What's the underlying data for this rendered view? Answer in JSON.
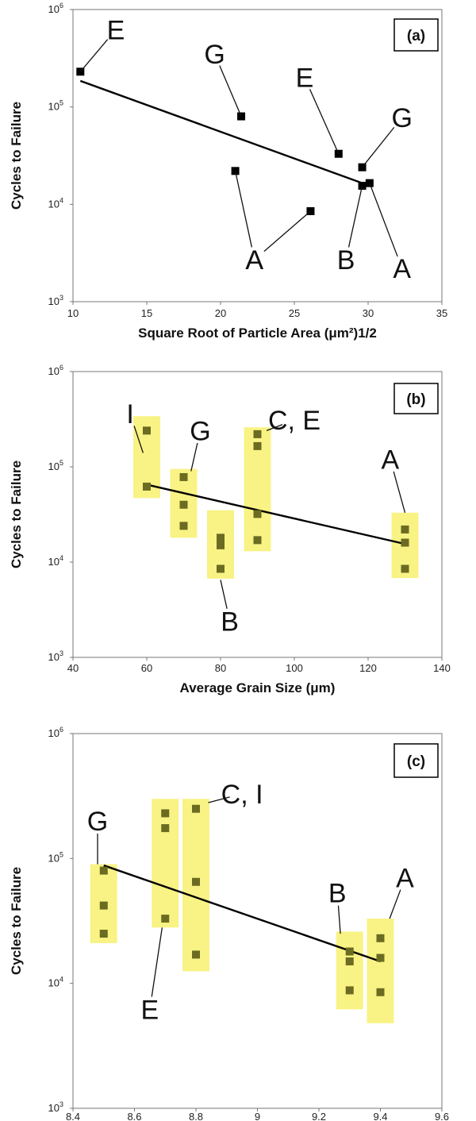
{
  "chart_data": [
    {
      "type": "scatter",
      "panel_label": "(a)",
      "xlabel": "Square Root of Particle Area (μm²)1/2",
      "ylabel": "Cycles to Failure",
      "xlim": [
        10,
        35
      ],
      "ylim": [
        1000,
        1000000
      ],
      "yscale": "log",
      "xticks": [
        "10",
        "15",
        "20",
        "25",
        "30",
        "35"
      ],
      "ytick_bases": [
        "10",
        "10",
        "10",
        "10"
      ],
      "ytick_exps": [
        "3",
        "4",
        "5",
        "6"
      ],
      "points": [
        {
          "x": 10.5,
          "y": 230000
        },
        {
          "x": 21.4,
          "y": 80000
        },
        {
          "x": 21.0,
          "y": 22000
        },
        {
          "x": 26.1,
          "y": 8500
        },
        {
          "x": 28.0,
          "y": 33000
        },
        {
          "x": 29.6,
          "y": 24000
        },
        {
          "x": 29.6,
          "y": 15500
        },
        {
          "x": 30.1,
          "y": 16500
        }
      ],
      "trendline": {
        "x": [
          10.5,
          30.1
        ],
        "y": [
          185000,
          15500
        ]
      },
      "annotations": [
        {
          "text": "E",
          "x": 12.9,
          "y": 620000,
          "point": [
            10.5,
            230000
          ]
        },
        {
          "text": "G",
          "x": 19.6,
          "y": 350000,
          "point": [
            21.4,
            80000
          ]
        },
        {
          "text": "E",
          "x": 25.7,
          "y": 200000,
          "point": [
            28.0,
            33000
          ]
        },
        {
          "text": "G",
          "x": 32.3,
          "y": 78000,
          "point": [
            29.6,
            24000
          ]
        },
        {
          "text": "A",
          "x": 22.3,
          "y": 2700,
          "point": [
            21.0,
            22000
          ]
        },
        {
          "text": "A",
          "x": 22.3,
          "y": 2700,
          "point": [
            26.1,
            8500
          ]
        },
        {
          "text": "B",
          "x": 28.5,
          "y": 2700,
          "point": [
            29.6,
            15500
          ]
        },
        {
          "text": "A",
          "x": 32.3,
          "y": 2200,
          "point": [
            30.1,
            16500
          ]
        }
      ],
      "grid": false
    },
    {
      "type": "scatter",
      "panel_label": "(b)",
      "xlabel": "Average Grain Size (μm)",
      "ylabel": "Cycles to Failure",
      "xlim": [
        40,
        140
      ],
      "ylim": [
        1000,
        1000000
      ],
      "yscale": "log",
      "xticks": [
        "40",
        "60",
        "80",
        "100",
        "120",
        "140"
      ],
      "ytick_bases": [
        "10",
        "10",
        "10",
        "10"
      ],
      "ytick_exps": [
        "3",
        "4",
        "5",
        "6"
      ],
      "points": [
        {
          "x": 60,
          "y": 240000
        },
        {
          "x": 60,
          "y": 62000
        },
        {
          "x": 70,
          "y": 78000
        },
        {
          "x": 70,
          "y": 40000
        },
        {
          "x": 70,
          "y": 24000
        },
        {
          "x": 80,
          "y": 18000
        },
        {
          "x": 80,
          "y": 15000
        },
        {
          "x": 80,
          "y": 8500
        },
        {
          "x": 90,
          "y": 220000
        },
        {
          "x": 90,
          "y": 165000
        },
        {
          "x": 90,
          "y": 32000
        },
        {
          "x": 90,
          "y": 17000
        },
        {
          "x": 130,
          "y": 22000
        },
        {
          "x": 130,
          "y": 16000
        },
        {
          "x": 130,
          "y": 8500
        }
      ],
      "highlight_boxes": [
        {
          "x": 60,
          "y_range": [
            47000,
            340000
          ]
        },
        {
          "x": 70,
          "y_range": [
            18000,
            95000
          ]
        },
        {
          "x": 80,
          "y_range": [
            6700,
            35000
          ]
        },
        {
          "x": 90,
          "y_range": [
            13000,
            260000
          ]
        },
        {
          "x": 130,
          "y_range": [
            6800,
            33000
          ]
        }
      ],
      "trendline": {
        "x": [
          60,
          130
        ],
        "y": [
          65000,
          15500
        ]
      },
      "annotations": [
        {
          "text": "I",
          "x": 55.5,
          "y": 360000,
          "point": [
            59,
            140000
          ]
        },
        {
          "text": "G",
          "x": 74.5,
          "y": 240000,
          "point": [
            72,
            90000
          ]
        },
        {
          "text": "C, E",
          "x": 100,
          "y": 310000,
          "point": [
            92.5,
            240000
          ]
        },
        {
          "text": "B",
          "x": 82.5,
          "y": 2400,
          "point": [
            80,
            6500
          ]
        },
        {
          "text": "A",
          "x": 126,
          "y": 120000,
          "point": [
            130,
            33000
          ]
        }
      ],
      "grid": false
    },
    {
      "type": "scatter",
      "panel_label": "(c)",
      "xlabel": "",
      "ylabel": "Cycles to Failure",
      "xlim": [
        8.4,
        9.6
      ],
      "ylim": [
        1000,
        1000000
      ],
      "yscale": "log",
      "xticks": [
        "8.4",
        "8.6",
        "8.8",
        "9",
        "9.2",
        "9.4",
        "9.6"
      ],
      "ytick_bases": [
        "10",
        "10",
        "10",
        "10"
      ],
      "ytick_exps": [
        "3",
        "4",
        "5",
        "6"
      ],
      "points": [
        {
          "x": 8.5,
          "y": 80000
        },
        {
          "x": 8.5,
          "y": 42000
        },
        {
          "x": 8.5,
          "y": 25000
        },
        {
          "x": 8.7,
          "y": 230000
        },
        {
          "x": 8.7,
          "y": 175000
        },
        {
          "x": 8.7,
          "y": 33000
        },
        {
          "x": 8.8,
          "y": 250000
        },
        {
          "x": 8.8,
          "y": 65000
        },
        {
          "x": 8.8,
          "y": 17000
        },
        {
          "x": 9.3,
          "y": 18000
        },
        {
          "x": 9.3,
          "y": 15000
        },
        {
          "x": 9.3,
          "y": 8800
        },
        {
          "x": 9.4,
          "y": 23000
        },
        {
          "x": 9.4,
          "y": 16000
        },
        {
          "x": 9.4,
          "y": 8500
        }
      ],
      "highlight_boxes": [
        {
          "x": 8.5,
          "y_range": [
            21000,
            90000
          ]
        },
        {
          "x": 8.7,
          "y_range": [
            28000,
            300000
          ]
        },
        {
          "x": 8.8,
          "y_range": [
            12500,
            300000
          ]
        },
        {
          "x": 9.3,
          "y_range": [
            6200,
            26000
          ]
        },
        {
          "x": 9.4,
          "y_range": [
            4800,
            33000
          ]
        }
      ],
      "trendline": {
        "x": [
          8.5,
          9.4
        ],
        "y": [
          88000,
          15000
        ]
      },
      "annotations": [
        {
          "text": "G",
          "x": 8.48,
          "y": 200000,
          "point": [
            8.48,
            90000
          ]
        },
        {
          "text": "C, I",
          "x": 8.95,
          "y": 330000,
          "point": [
            8.84,
            280000
          ]
        },
        {
          "text": "E",
          "x": 8.65,
          "y": 6200,
          "point": [
            8.69,
            28000
          ]
        },
        {
          "text": "B",
          "x": 9.26,
          "y": 53000,
          "point": [
            9.27,
            25000
          ]
        },
        {
          "text": "A",
          "x": 9.48,
          "y": 70000,
          "point": [
            9.43,
            33000
          ]
        }
      ],
      "grid": false
    }
  ]
}
